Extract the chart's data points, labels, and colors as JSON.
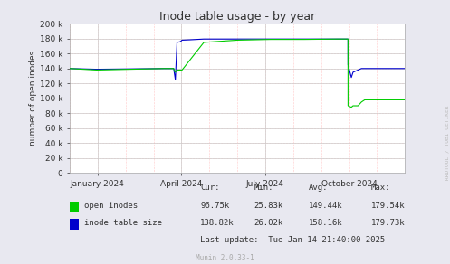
{
  "title": "Inode table usage - by year",
  "ylabel": "number of open inodes",
  "bg_color": "#e8e8f0",
  "plot_bg_color": "#ffffff",
  "ylim": [
    0,
    200000
  ],
  "yticks": [
    0,
    20000,
    40000,
    60000,
    80000,
    100000,
    120000,
    140000,
    160000,
    180000,
    200000
  ],
  "xtick_labels": [
    "January 2024",
    "April 2024",
    "July 2024",
    "October 2024"
  ],
  "xtick_positions": [
    0.083,
    0.333,
    0.583,
    0.833
  ],
  "open_inodes_color": "#00cc00",
  "inode_table_color": "#0000cc",
  "legend_items": [
    "open inodes",
    "inode table size"
  ],
  "legend_colors": [
    "#00cc00",
    "#0000cc"
  ],
  "stats_header": [
    "Cur:",
    "Min:",
    "Avg:",
    "Max:"
  ],
  "open_inodes_stats": [
    "96.75k",
    "25.83k",
    "149.44k",
    "179.54k"
  ],
  "inode_table_stats": [
    "138.82k",
    "26.02k",
    "158.16k",
    "179.73k"
  ],
  "last_update": "Last update:  Tue Jan 14 21:40:00 2025",
  "munin_version": "Munin 2.0.33-1",
  "watermark": "RRDTOOL / TOBI OETIKER",
  "open_inodes_data": {
    "x": [
      0,
      0.08,
      0.28,
      0.3,
      0.31,
      0.315,
      0.32,
      0.33,
      0.335,
      0.4,
      0.5,
      0.6,
      0.7,
      0.8,
      0.82,
      0.83,
      0.8301,
      0.84,
      0.845,
      0.86,
      0.87,
      0.88,
      0.92,
      0.96,
      1.0
    ],
    "y": [
      140000,
      138000,
      140000,
      140000,
      140000,
      135000,
      138000,
      138000,
      138000,
      175000,
      178000,
      179000,
      179000,
      179500,
      179500,
      179500,
      90000,
      88000,
      90000,
      90000,
      95000,
      98000,
      98000,
      98000,
      98000
    ]
  },
  "inode_table_data": {
    "x": [
      0,
      0.08,
      0.28,
      0.3,
      0.31,
      0.315,
      0.32,
      0.33,
      0.335,
      0.36,
      0.38,
      0.4,
      0.5,
      0.6,
      0.7,
      0.8,
      0.82,
      0.83,
      0.8301,
      0.84,
      0.845,
      0.86,
      0.87,
      0.92,
      0.96,
      1.0
    ],
    "y": [
      140000,
      139000,
      140000,
      140000,
      140000,
      125000,
      175000,
      176000,
      178000,
      178500,
      179000,
      179500,
      179500,
      179500,
      179500,
      179500,
      179500,
      179500,
      145000,
      128000,
      135000,
      138000,
      140000,
      140000,
      140000,
      140000
    ]
  }
}
